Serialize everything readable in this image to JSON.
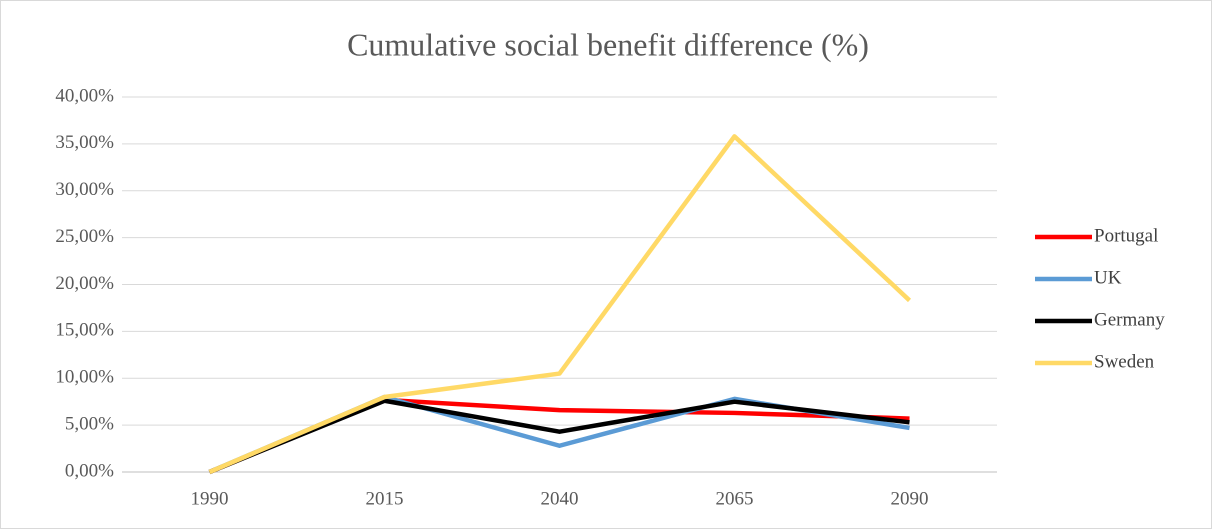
{
  "chart_data": {
    "type": "line",
    "title": "Cumulative social benefit difference (%)",
    "categories": [
      "1990",
      "2015",
      "2040",
      "2065",
      "2090"
    ],
    "series": [
      {
        "name": "Portugal",
        "color": "#ff0000",
        "values": [
          0,
          7.7,
          6.6,
          6.3,
          5.7
        ]
      },
      {
        "name": "UK",
        "color": "#5b9bd5",
        "values": [
          0,
          8.0,
          2.8,
          7.8,
          4.7
        ]
      },
      {
        "name": "Germany",
        "color": "#000000",
        "values": [
          0,
          7.6,
          4.3,
          7.5,
          5.3
        ]
      },
      {
        "name": "Sweden",
        "color": "#ffd966",
        "values": [
          0,
          8.0,
          10.5,
          35.8,
          18.3
        ]
      }
    ],
    "ylim": [
      0,
      40
    ],
    "yticks": [
      {
        "value": 0,
        "label": "0,00%"
      },
      {
        "value": 5,
        "label": "5,00%"
      },
      {
        "value": 10,
        "label": "10,00%"
      },
      {
        "value": 15,
        "label": "15,00%"
      },
      {
        "value": 20,
        "label": "20,00%"
      },
      {
        "value": 25,
        "label": "25,00%"
      },
      {
        "value": 30,
        "label": "30,00%"
      },
      {
        "value": 35,
        "label": "35,00%"
      },
      {
        "value": 40,
        "label": "40,00%"
      }
    ],
    "grid": true,
    "legend": "right"
  }
}
